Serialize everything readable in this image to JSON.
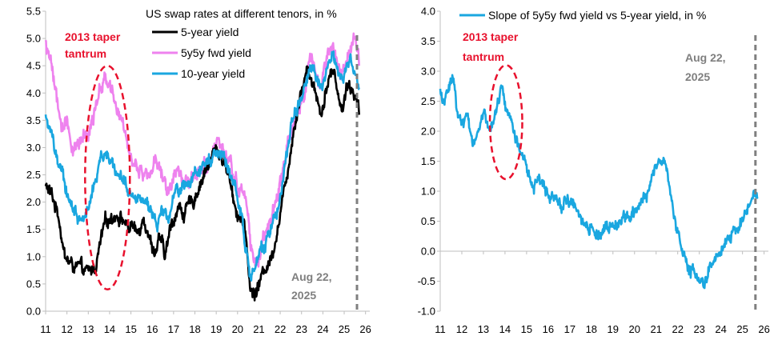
{
  "colors": {
    "black": "#000000",
    "pink": "#ee82ee",
    "blue": "#1aa7e0",
    "annotation_red": "#e8112d",
    "annotation_grey": "#7f7f7f",
    "axis": "#bfbfbf"
  },
  "chart_data": [
    {
      "type": "line",
      "title": "US swap rates at different tenors, in %",
      "xlabel": "",
      "ylabel": "",
      "xlim": [
        11,
        26.2
      ],
      "ylim": [
        0.0,
        5.5
      ],
      "x_ticks": [
        11,
        12,
        13,
        14,
        15,
        16,
        17,
        18,
        19,
        20,
        21,
        22,
        23,
        24,
        25,
        26
      ],
      "x_tick_labels": [
        "11",
        "12",
        "13",
        "14",
        "15",
        "16",
        "17",
        "18",
        "19",
        "20",
        "21",
        "22",
        "23",
        "24",
        "25",
        "26"
      ],
      "y_ticks": [
        0.0,
        0.5,
        1.0,
        1.5,
        2.0,
        2.5,
        3.0,
        3.5,
        4.0,
        4.5,
        5.0,
        5.5
      ],
      "y_tick_labels": [
        "0.0",
        "0.5",
        "1.0",
        "1.5",
        "2.0",
        "2.5",
        "3.0",
        "3.5",
        "4.0",
        "4.5",
        "5.0",
        "5.5"
      ],
      "series": [
        {
          "name": "5-year yield",
          "color": "#000000",
          "x": [
            11.0,
            11.3,
            11.6,
            11.9,
            12.2,
            12.5,
            12.8,
            13.0,
            13.3,
            13.45,
            13.6,
            13.8,
            14.0,
            14.3,
            14.6,
            14.9,
            15.0,
            15.3,
            15.6,
            15.9,
            16.1,
            16.4,
            16.6,
            16.9,
            17.2,
            17.5,
            17.9,
            18.2,
            18.5,
            18.8,
            19.0,
            19.3,
            19.6,
            19.8,
            20.0,
            20.2,
            20.4,
            20.6,
            20.8,
            21.0,
            21.3,
            21.6,
            21.9,
            22.1,
            22.3,
            22.5,
            22.7,
            22.9,
            23.1,
            23.3,
            23.5,
            23.7,
            23.9,
            24.1,
            24.3,
            24.5,
            24.7,
            24.9,
            25.1,
            25.3,
            25.5,
            25.7
          ],
          "y": [
            2.3,
            2.1,
            1.8,
            1.0,
            0.85,
            0.8,
            0.72,
            0.7,
            0.8,
            1.0,
            1.3,
            1.6,
            1.7,
            1.8,
            1.7,
            1.5,
            1.6,
            1.4,
            1.8,
            1.3,
            1.1,
            1.3,
            1.0,
            1.6,
            1.9,
            1.8,
            2.0,
            2.3,
            2.6,
            2.8,
            3.0,
            2.8,
            2.5,
            2.1,
            1.8,
            1.7,
            1.3,
            0.4,
            0.3,
            0.5,
            0.8,
            1.0,
            1.6,
            2.0,
            2.5,
            3.0,
            3.5,
            3.9,
            4.2,
            4.5,
            4.2,
            4.0,
            3.6,
            4.0,
            4.3,
            4.4,
            4.1,
            3.6,
            4.2,
            4.1,
            4.0,
            3.6
          ]
        },
        {
          "name": "5y5y fwd yield",
          "color": "#ee82ee",
          "x": [
            11.0,
            11.2,
            11.4,
            11.6,
            11.8,
            12.0,
            12.2,
            12.5,
            12.8,
            13.0,
            13.2,
            13.4,
            13.6,
            13.8,
            13.9,
            14.1,
            14.3,
            14.5,
            14.7,
            14.9,
            15.1,
            15.4,
            15.7,
            16.0,
            16.2,
            16.5,
            16.8,
            17.1,
            17.5,
            17.9,
            18.2,
            18.5,
            18.8,
            19.0,
            19.2,
            19.5,
            19.8,
            20.0,
            20.2,
            20.4,
            20.6,
            20.8,
            21.0,
            21.3,
            21.6,
            21.9,
            22.1,
            22.3,
            22.5,
            22.7,
            22.9,
            23.1,
            23.3,
            23.5,
            23.7,
            23.9,
            24.1,
            24.3,
            24.5,
            24.7,
            24.9,
            25.1,
            25.3,
            25.5,
            25.7
          ],
          "y": [
            4.9,
            4.6,
            4.2,
            3.6,
            3.3,
            3.5,
            3.1,
            3.0,
            3.2,
            3.3,
            3.6,
            3.9,
            4.1,
            4.3,
            4.2,
            4.0,
            3.8,
            3.5,
            3.3,
            3.0,
            2.8,
            2.6,
            2.4,
            2.6,
            2.8,
            2.5,
            2.2,
            2.6,
            2.4,
            2.5,
            2.6,
            2.7,
            2.8,
            3.1,
            3.0,
            2.8,
            2.5,
            2.3,
            2.2,
            2.0,
            1.3,
            0.8,
            1.0,
            1.5,
            1.8,
            2.1,
            2.5,
            2.9,
            3.3,
            3.6,
            3.8,
            4.0,
            4.5,
            4.6,
            4.3,
            4.1,
            4.4,
            4.6,
            4.8,
            4.5,
            4.3,
            4.6,
            4.8,
            5.0,
            4.5
          ]
        },
        {
          "name": "10-year yield",
          "color": "#1aa7e0",
          "x": [
            11.0,
            11.2,
            11.4,
            11.6,
            11.8,
            12.0,
            12.2,
            12.5,
            12.8,
            13.0,
            13.2,
            13.4,
            13.6,
            13.8,
            14.0,
            14.3,
            14.6,
            14.9,
            15.1,
            15.4,
            15.7,
            16.0,
            16.2,
            16.5,
            16.8,
            17.1,
            17.5,
            17.9,
            18.2,
            18.5,
            18.8,
            19.0,
            19.2,
            19.5,
            19.8,
            20.0,
            20.2,
            20.4,
            20.6,
            20.8,
            21.0,
            21.3,
            21.6,
            21.9,
            22.1,
            22.3,
            22.5,
            22.7,
            22.9,
            23.1,
            23.3,
            23.5,
            23.7,
            23.9,
            24.1,
            24.3,
            24.5,
            24.7,
            24.9,
            25.1,
            25.3,
            25.5,
            25.7
          ],
          "y": [
            3.6,
            3.3,
            3.0,
            2.7,
            2.5,
            2.1,
            2.0,
            1.7,
            1.8,
            1.9,
            2.2,
            2.5,
            2.8,
            2.9,
            2.8,
            2.6,
            2.4,
            2.2,
            2.1,
            2.1,
            2.0,
            1.9,
            1.6,
            1.8,
            1.7,
            2.2,
            2.3,
            2.4,
            2.5,
            2.7,
            2.9,
            3.0,
            2.9,
            2.7,
            2.3,
            2.1,
            1.8,
            1.2,
            0.6,
            0.8,
            1.0,
            1.2,
            1.6,
            1.9,
            2.4,
            2.9,
            3.4,
            3.6,
            3.8,
            4.0,
            4.3,
            4.5,
            4.2,
            4.1,
            4.3,
            4.5,
            4.7,
            4.4,
            4.2,
            4.5,
            4.6,
            4.4,
            4.1
          ]
        }
      ],
      "annotations": [
        {
          "text": "2013 taper",
          "color": "#e8112d"
        },
        {
          "text": "tantrum",
          "color": "#e8112d"
        },
        {
          "text": "Aug 22,",
          "color": "#7f7f7f"
        },
        {
          "text": "2025",
          "color": "#7f7f7f"
        }
      ],
      "vline_x": 25.6,
      "ellipse": {
        "cx": 13.9,
        "cy": 2.45,
        "rx": 1.05,
        "ry": 2.05
      },
      "legend_position": "top-center"
    },
    {
      "type": "line",
      "title": "",
      "xlabel": "",
      "ylabel": "",
      "xlim": [
        11,
        26.2
      ],
      "ylim": [
        -1.0,
        4.0
      ],
      "x_ticks": [
        11,
        12,
        13,
        14,
        15,
        16,
        17,
        18,
        19,
        20,
        21,
        22,
        23,
        24,
        25,
        26
      ],
      "x_tick_labels": [
        "11",
        "12",
        "13",
        "14",
        "15",
        "16",
        "17",
        "18",
        "19",
        "20",
        "21",
        "22",
        "23",
        "24",
        "25",
        "26"
      ],
      "y_ticks": [
        -1.0,
        -0.5,
        0.0,
        0.5,
        1.0,
        1.5,
        2.0,
        2.5,
        3.0,
        3.5,
        4.0
      ],
      "y_tick_labels": [
        "-1.0",
        "-0.5",
        "0.0",
        "0.5",
        "1.0",
        "1.5",
        "2.0",
        "2.5",
        "3.0",
        "3.5",
        "4.0"
      ],
      "series": [
        {
          "name": "Slope of 5y5y fwd yield vs 5-year yield, in %",
          "color": "#1aa7e0",
          "x": [
            11.0,
            11.2,
            11.4,
            11.6,
            11.8,
            12.0,
            12.2,
            12.4,
            12.6,
            12.8,
            13.0,
            13.2,
            13.4,
            13.6,
            13.8,
            13.9,
            14.1,
            14.3,
            14.5,
            14.7,
            14.9,
            15.1,
            15.3,
            15.5,
            15.8,
            16.1,
            16.4,
            16.7,
            17.0,
            17.3,
            17.6,
            17.9,
            18.2,
            18.5,
            18.8,
            19.1,
            19.4,
            19.7,
            20.0,
            20.2,
            20.4,
            20.6,
            20.8,
            21.0,
            21.2,
            21.4,
            21.6,
            21.8,
            22.0,
            22.2,
            22.4,
            22.6,
            22.8,
            23.0,
            23.2,
            23.4,
            23.6,
            23.8,
            24.0,
            24.2,
            24.4,
            24.6,
            24.8,
            25.0,
            25.2,
            25.4,
            25.6,
            25.7
          ],
          "y": [
            2.7,
            2.5,
            2.8,
            2.9,
            2.3,
            2.1,
            2.3,
            2.0,
            1.8,
            2.0,
            2.3,
            2.1,
            2.2,
            2.4,
            2.7,
            2.6,
            2.3,
            2.2,
            1.9,
            1.7,
            1.6,
            1.3,
            1.0,
            1.2,
            1.1,
            1.0,
            0.9,
            0.8,
            0.9,
            0.7,
            0.5,
            0.4,
            0.3,
            0.35,
            0.4,
            0.45,
            0.5,
            0.55,
            0.6,
            0.7,
            0.8,
            1.0,
            1.2,
            1.4,
            1.6,
            1.5,
            1.1,
            0.6,
            0.3,
            0.1,
            -0.1,
            -0.3,
            -0.4,
            -0.45,
            -0.5,
            -0.4,
            -0.2,
            -0.1,
            0.0,
            0.1,
            0.2,
            0.3,
            0.4,
            0.5,
            0.7,
            0.8,
            1.0,
            0.9
          ]
        }
      ],
      "annotations": [
        {
          "text": "2013 taper",
          "color": "#e8112d"
        },
        {
          "text": "tantrum",
          "color": "#e8112d"
        },
        {
          "text": "Aug 22,",
          "color": "#7f7f7f"
        },
        {
          "text": "2025",
          "color": "#7f7f7f"
        }
      ],
      "vline_x": 25.6,
      "ellipse": {
        "cx": 14.05,
        "cy": 2.15,
        "rx": 0.75,
        "ry": 0.95
      },
      "legend_position": "top-center"
    }
  ]
}
